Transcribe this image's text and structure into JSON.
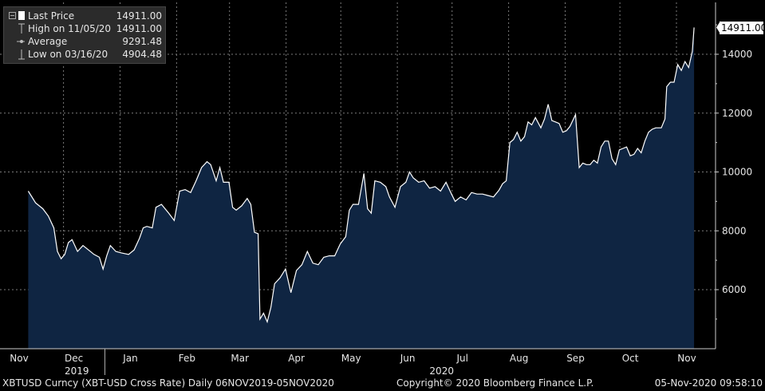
{
  "legend": {
    "items": [
      {
        "label": "Last Price",
        "value": "14911.00",
        "icon": "filled-square-icon"
      },
      {
        "label": "High on 11/05/20",
        "value": "14911.00",
        "icon": "high-marker-icon"
      },
      {
        "label": "Average",
        "value": "9291.48",
        "icon": "average-line-icon"
      },
      {
        "label": "Low on 03/16/20",
        "value": "4904.48",
        "icon": "low-marker-icon"
      }
    ]
  },
  "last_price_badge": "14911.00",
  "footer": {
    "left": "XBTUSD Curncy (XBT-USD Cross Rate)  Daily 06NOV2019-05NOV2020",
    "center": "Copyright© 2020 Bloomberg Finance L.P.",
    "right": "05-Nov-2020 09:58:10"
  },
  "colors": {
    "background": "#000000",
    "area": "#0f2542",
    "line": "#ffffff",
    "grid": "#7a7a7a"
  },
  "chart_data": {
    "type": "area",
    "title": "",
    "xlabel": "",
    "ylabel": "",
    "y_ticks": [
      6000,
      8000,
      10000,
      12000,
      14000
    ],
    "ylim": [
      4300,
      15200
    ],
    "x_range": [
      "2019-11-06",
      "2020-11-05"
    ],
    "month_labels": [
      {
        "label": "Nov",
        "date": "2019-11-01"
      },
      {
        "label": "Dec",
        "date": "2019-12-01"
      },
      {
        "label": "Jan",
        "date": "2020-01-01"
      },
      {
        "label": "Feb",
        "date": "2020-02-01"
      },
      {
        "label": "Mar",
        "date": "2020-03-01"
      },
      {
        "label": "Apr",
        "date": "2020-04-01"
      },
      {
        "label": "May",
        "date": "2020-05-01"
      },
      {
        "label": "Jun",
        "date": "2020-06-01"
      },
      {
        "label": "Jul",
        "date": "2020-07-01"
      },
      {
        "label": "Aug",
        "date": "2020-08-01"
      },
      {
        "label": "Sep",
        "date": "2020-09-01"
      },
      {
        "label": "Oct",
        "date": "2020-10-01"
      },
      {
        "label": "Nov",
        "date": "2020-11-01"
      }
    ],
    "year_labels": [
      {
        "label": "2019",
        "date": "2019-11-30"
      },
      {
        "label": "2020",
        "date": "2020-06-17"
      }
    ],
    "grid": true,
    "series": [
      {
        "values": [
          [
            "2019-11-06",
            9350
          ],
          [
            "2019-11-10",
            8950
          ],
          [
            "2019-11-14",
            8750
          ],
          [
            "2019-11-17",
            8500
          ],
          [
            "2019-11-20",
            8100
          ],
          [
            "2019-11-22",
            7300
          ],
          [
            "2019-11-24",
            7050
          ],
          [
            "2019-11-26",
            7200
          ],
          [
            "2019-11-28",
            7600
          ],
          [
            "2019-11-30",
            7700
          ],
          [
            "2019-12-03",
            7300
          ],
          [
            "2019-12-06",
            7500
          ],
          [
            "2019-12-09",
            7350
          ],
          [
            "2019-12-12",
            7200
          ],
          [
            "2019-12-15",
            7100
          ],
          [
            "2019-12-17",
            6700
          ],
          [
            "2019-12-19",
            7150
          ],
          [
            "2019-12-21",
            7500
          ],
          [
            "2019-12-24",
            7300
          ],
          [
            "2019-12-27",
            7250
          ],
          [
            "2019-12-31",
            7200
          ],
          [
            "2020-01-03",
            7350
          ],
          [
            "2020-01-06",
            7750
          ],
          [
            "2020-01-08",
            8100
          ],
          [
            "2020-01-10",
            8150
          ],
          [
            "2020-01-13",
            8100
          ],
          [
            "2020-01-15",
            8800
          ],
          [
            "2020-01-18",
            8900
          ],
          [
            "2020-01-22",
            8600
          ],
          [
            "2020-01-25",
            8350
          ],
          [
            "2020-01-28",
            9350
          ],
          [
            "2020-01-31",
            9400
          ],
          [
            "2020-02-03",
            9300
          ],
          [
            "2020-02-06",
            9700
          ],
          [
            "2020-02-09",
            10150
          ],
          [
            "2020-02-12",
            10350
          ],
          [
            "2020-02-14",
            10250
          ],
          [
            "2020-02-17",
            9700
          ],
          [
            "2020-02-19",
            10150
          ],
          [
            "2020-02-21",
            9650
          ],
          [
            "2020-02-24",
            9650
          ],
          [
            "2020-02-26",
            8800
          ],
          [
            "2020-02-28",
            8700
          ],
          [
            "2020-03-02",
            8850
          ],
          [
            "2020-03-05",
            9100
          ],
          [
            "2020-03-07",
            8900
          ],
          [
            "2020-03-09",
            7950
          ],
          [
            "2020-03-11",
            7900
          ],
          [
            "2020-03-12",
            5000
          ],
          [
            "2020-03-14",
            5200
          ],
          [
            "2020-03-16",
            4904
          ],
          [
            "2020-03-18",
            5400
          ],
          [
            "2020-03-20",
            6200
          ],
          [
            "2020-03-23",
            6400
          ],
          [
            "2020-03-26",
            6700
          ],
          [
            "2020-03-29",
            5900
          ],
          [
            "2020-04-01",
            6650
          ],
          [
            "2020-04-04",
            6850
          ],
          [
            "2020-04-07",
            7300
          ],
          [
            "2020-04-10",
            6900
          ],
          [
            "2020-04-13",
            6850
          ],
          [
            "2020-04-16",
            7100
          ],
          [
            "2020-04-19",
            7150
          ],
          [
            "2020-04-22",
            7150
          ],
          [
            "2020-04-25",
            7550
          ],
          [
            "2020-04-28",
            7800
          ],
          [
            "2020-04-30",
            8700
          ],
          [
            "2020-05-02",
            8900
          ],
          [
            "2020-05-05",
            8900
          ],
          [
            "2020-05-08",
            9950
          ],
          [
            "2020-05-10",
            8750
          ],
          [
            "2020-05-12",
            8600
          ],
          [
            "2020-05-14",
            9700
          ],
          [
            "2020-05-17",
            9650
          ],
          [
            "2020-05-20",
            9500
          ],
          [
            "2020-05-22",
            9150
          ],
          [
            "2020-05-25",
            8800
          ],
          [
            "2020-05-28",
            9500
          ],
          [
            "2020-05-31",
            9650
          ],
          [
            "2020-06-02",
            10000
          ],
          [
            "2020-06-04",
            9800
          ],
          [
            "2020-06-07",
            9650
          ],
          [
            "2020-06-10",
            9700
          ],
          [
            "2020-06-13",
            9450
          ],
          [
            "2020-06-16",
            9500
          ],
          [
            "2020-06-19",
            9350
          ],
          [
            "2020-06-22",
            9650
          ],
          [
            "2020-06-25",
            9250
          ],
          [
            "2020-06-27",
            9000
          ],
          [
            "2020-06-30",
            9150
          ],
          [
            "2020-07-03",
            9050
          ],
          [
            "2020-07-06",
            9300
          ],
          [
            "2020-07-09",
            9250
          ],
          [
            "2020-07-12",
            9250
          ],
          [
            "2020-07-15",
            9200
          ],
          [
            "2020-07-18",
            9150
          ],
          [
            "2020-07-21",
            9380
          ],
          [
            "2020-07-23",
            9600
          ],
          [
            "2020-07-25",
            9700
          ],
          [
            "2020-07-27",
            11000
          ],
          [
            "2020-07-29",
            11100
          ],
          [
            "2020-07-31",
            11350
          ],
          [
            "2020-08-02",
            11050
          ],
          [
            "2020-08-04",
            11200
          ],
          [
            "2020-08-06",
            11700
          ],
          [
            "2020-08-08",
            11600
          ],
          [
            "2020-08-10",
            11850
          ],
          [
            "2020-08-13",
            11500
          ],
          [
            "2020-08-15",
            11800
          ],
          [
            "2020-08-17",
            12300
          ],
          [
            "2020-08-19",
            11750
          ],
          [
            "2020-08-21",
            11700
          ],
          [
            "2020-08-23",
            11650
          ],
          [
            "2020-08-25",
            11350
          ],
          [
            "2020-08-27",
            11400
          ],
          [
            "2020-08-29",
            11550
          ],
          [
            "2020-09-01",
            11950
          ],
          [
            "2020-09-03",
            10150
          ],
          [
            "2020-09-05",
            10300
          ],
          [
            "2020-09-07",
            10250
          ],
          [
            "2020-09-09",
            10250
          ],
          [
            "2020-09-11",
            10400
          ],
          [
            "2020-09-13",
            10300
          ],
          [
            "2020-09-15",
            10850
          ],
          [
            "2020-09-17",
            11050
          ],
          [
            "2020-09-19",
            11050
          ],
          [
            "2020-09-21",
            10450
          ],
          [
            "2020-09-23",
            10250
          ],
          [
            "2020-09-25",
            10750
          ],
          [
            "2020-09-27",
            10800
          ],
          [
            "2020-09-29",
            10850
          ],
          [
            "2020-10-01",
            10550
          ],
          [
            "2020-10-03",
            10600
          ],
          [
            "2020-10-05",
            10800
          ],
          [
            "2020-10-07",
            10650
          ],
          [
            "2020-10-09",
            11050
          ],
          [
            "2020-10-11",
            11350
          ],
          [
            "2020-10-13",
            11450
          ],
          [
            "2020-10-15",
            11500
          ],
          [
            "2020-10-18",
            11500
          ],
          [
            "2020-10-20",
            11800
          ],
          [
            "2020-10-21",
            12900
          ],
          [
            "2020-10-23",
            13050
          ],
          [
            "2020-10-25",
            13050
          ],
          [
            "2020-10-27",
            13650
          ],
          [
            "2020-10-29",
            13450
          ],
          [
            "2020-10-31",
            13750
          ],
          [
            "2020-11-02",
            13550
          ],
          [
            "2020-11-04",
            14100
          ],
          [
            "2020-11-05",
            14911
          ]
        ]
      }
    ]
  }
}
